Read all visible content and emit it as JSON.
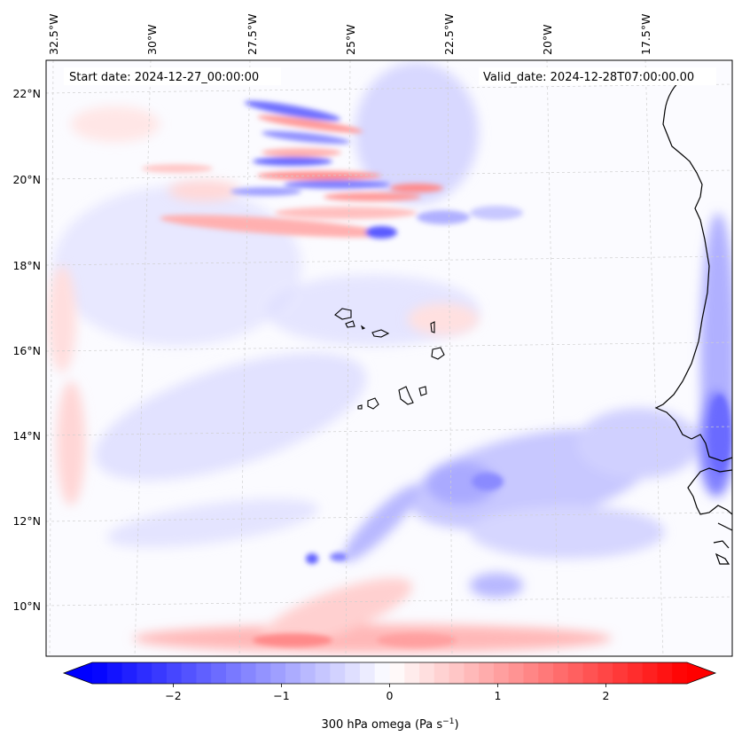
{
  "map": {
    "start_date": "Start date: 2024-12-27_00:00:00",
    "valid_date": "Valid_date: 2024-12-28T07:00:00.00",
    "lon_labels": [
      "32.5°W",
      "30°W",
      "27.5°W",
      "25°W",
      "22.5°W",
      "20°W",
      "17.5°W"
    ],
    "lat_labels": [
      "22°N",
      "20°N",
      "18°N",
      "16°N",
      "14°N",
      "12°N",
      "10°N"
    ],
    "field": "300 hPa omega",
    "colormap": "bwr",
    "extent": {
      "lon": [
        -33,
        -15.5
      ],
      "lat": [
        8.9,
        22.8
      ]
    }
  },
  "colorbar": {
    "label_main": "300 hPa omega (Pa s",
    "label_exp": "−1",
    "label_close": ")",
    "ticks": [
      "−2",
      "−1",
      "0",
      "1",
      "2"
    ],
    "range": [
      -2.75,
      2.75
    ],
    "extend": "both",
    "colors": {
      "low": "#0000ff",
      "mid": "#ffffff",
      "high": "#ff0000"
    }
  },
  "icons": {
    "coastline": "coastline-icon",
    "islands": "cape-verde-islands-icon"
  }
}
